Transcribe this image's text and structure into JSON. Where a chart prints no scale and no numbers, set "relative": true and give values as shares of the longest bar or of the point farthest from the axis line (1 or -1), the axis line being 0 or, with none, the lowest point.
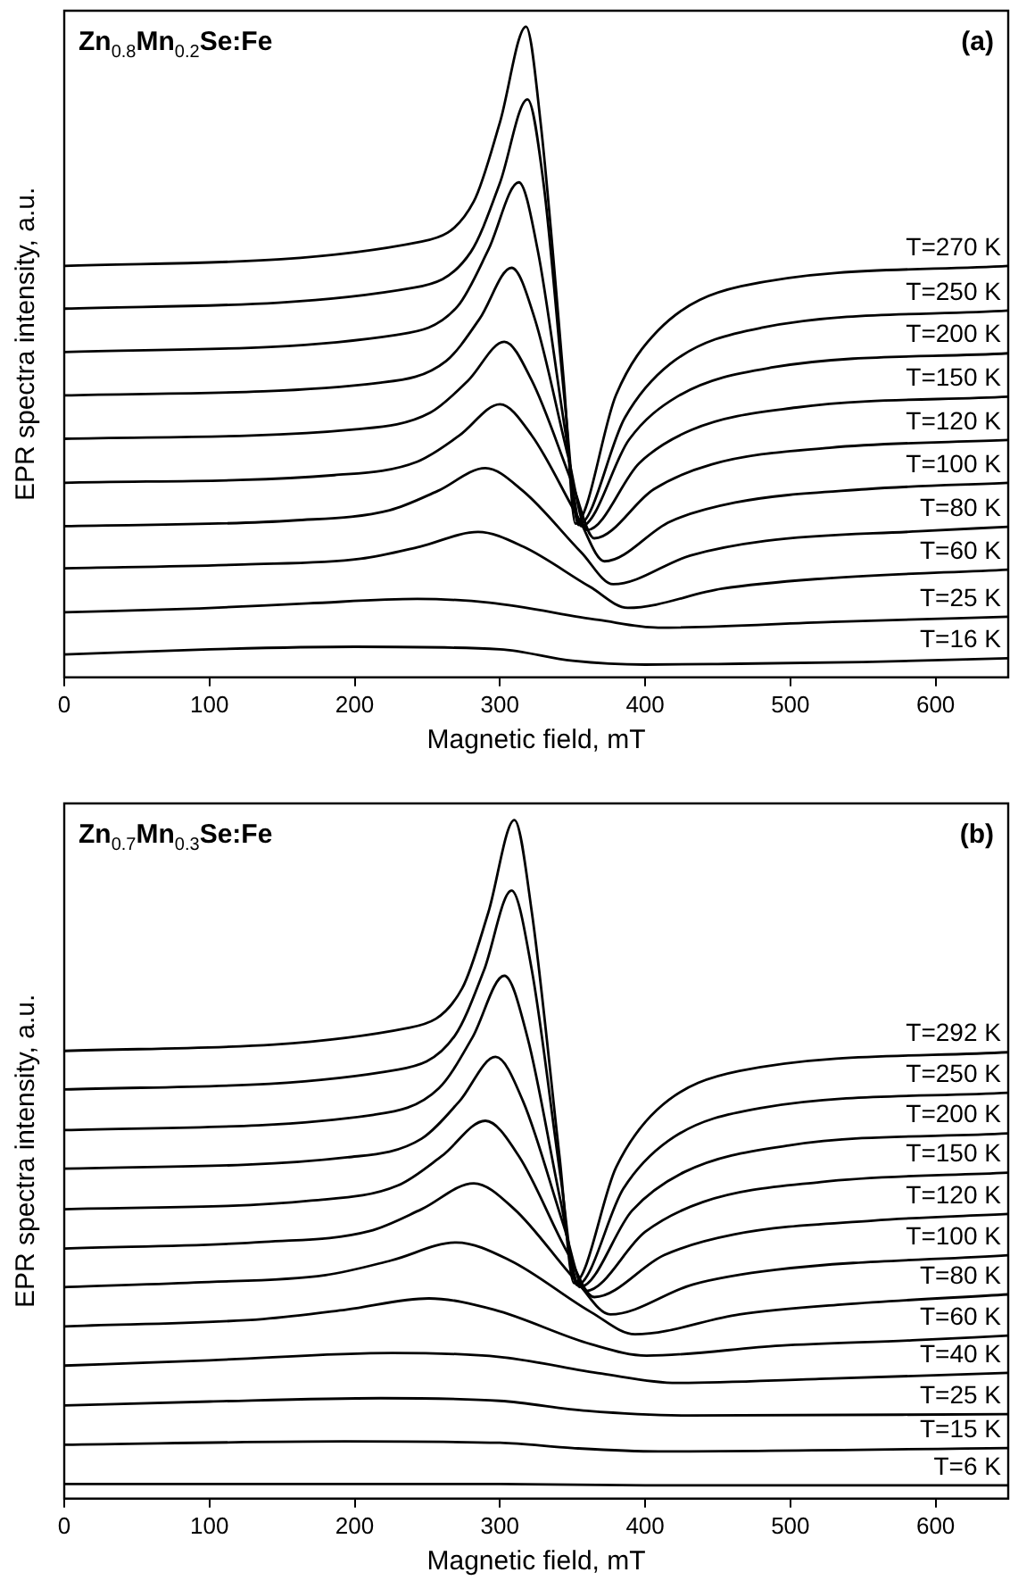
{
  "chart_data": [
    {
      "type": "line",
      "annotations": [
        "Zn$_{0.8}$Mn$_{0.2}$Se:Fe",
        "(a)"
      ],
      "xlabel": "Magnetic field, mT",
      "ylabel": "EPR spectra intensity, a.u.",
      "xlim": [
        0,
        650
      ],
      "xticks": [
        0,
        100,
        200,
        300,
        400,
        500,
        600
      ],
      "relative": true,
      "marker": "none",
      "series": [
        {
          "name": "T=270 K",
          "color": "#000000",
          "x": [
            0,
            246,
            282,
            300,
            318,
            328,
            344,
            352,
            380,
            409,
            466,
            650
          ],
          "values": [
            0.625,
            0.663,
            0.726,
            0.85,
            1.0,
            0.85,
            0.443,
            0.221,
            0.423,
            0.524,
            0.593,
            0.625
          ]
        },
        {
          "name": "T=250 K",
          "color": "#000000",
          "x": [
            0,
            241,
            280,
            300,
            319,
            330,
            345,
            354,
            386,
            417,
            480,
            650
          ],
          "values": [
            0.558,
            0.591,
            0.647,
            0.755,
            0.886,
            0.755,
            0.404,
            0.219,
            0.387,
            0.471,
            0.528,
            0.555
          ]
        },
        {
          "name": "T=200 K",
          "color": "#000000",
          "x": [
            0,
            229,
            271,
            292,
            313,
            326,
            345,
            356,
            389,
            422,
            488,
            650
          ],
          "values": [
            0.49,
            0.517,
            0.562,
            0.65,
            0.756,
            0.65,
            0.366,
            0.217,
            0.353,
            0.42,
            0.466,
            0.488
          ]
        },
        {
          "name": "T=150 K",
          "color": "#000000",
          "x": [
            0,
            218,
            263,
            286,
            308,
            324,
            347,
            360,
            396,
            432,
            504,
            650
          ],
          "values": [
            0.422,
            0.442,
            0.476,
            0.542,
            0.622,
            0.542,
            0.326,
            0.211,
            0.316,
            0.368,
            0.403,
            0.42
          ]
        },
        {
          "name": "T=120 K",
          "color": "#000000",
          "x": [
            0,
            201,
            252,
            278,
            303,
            322,
            350,
            365,
            406,
            446,
            527,
            650
          ],
          "values": [
            0.354,
            0.369,
            0.395,
            0.445,
            0.506,
            0.445,
            0.283,
            0.198,
            0.275,
            0.314,
            0.34,
            0.352
          ]
        },
        {
          "name": "T=100 K",
          "color": "#000000",
          "x": [
            0,
            186,
            243,
            272,
            300,
            322,
            354,
            372,
            417,
            462,
            552,
            650
          ],
          "values": [
            0.285,
            0.297,
            0.318,
            0.359,
            0.408,
            0.359,
            0.23,
            0.162,
            0.224,
            0.254,
            0.275,
            0.285
          ]
        },
        {
          "name": "T=80 K",
          "color": "#000000",
          "x": [
            0,
            158,
            224,
            257,
            290,
            316,
            356,
            378,
            431,
            483,
            588,
            650
          ],
          "values": [
            0.217,
            0.226,
            0.242,
            0.272,
            0.308,
            0.272,
            0.176,
            0.126,
            0.171,
            0.194,
            0.209,
            0.216
          ]
        },
        {
          "name": "T=60 K",
          "color": "#000000",
          "x": [
            0,
            123,
            204,
            245,
            285,
            316,
            362,
            388,
            453,
            517,
            650
          ],
          "values": [
            0.151,
            0.157,
            0.166,
            0.185,
            0.208,
            0.185,
            0.122,
            0.089,
            0.119,
            0.134,
            0.149
          ]
        },
        {
          "name": "T=25 K",
          "color": "#000000",
          "x": [
            0,
            93,
            168,
            243,
            293,
            368,
            409,
            529,
            650
          ],
          "values": [
            0.082,
            0.088,
            0.096,
            0.103,
            0.097,
            0.07,
            0.058,
            0.067,
            0.075
          ]
        },
        {
          "name": "T=16 K",
          "color": "#000000",
          "x": [
            0,
            100,
            200,
            300,
            350,
            400,
            450,
            550,
            650
          ],
          "values": [
            0.016,
            0.024,
            0.028,
            0.024,
            0.006,
            0.0,
            0.001,
            0.004,
            0.01
          ]
        }
      ]
    },
    {
      "type": "line",
      "annotations": [
        "Zn$_{0.7}$Mn$_{0.3}$Se:Fe",
        "(b)"
      ],
      "xlabel": "Magnetic field, mT",
      "ylabel": "EPR spectra intensity, a.u.",
      "xlim": [
        0,
        650
      ],
      "xticks": [
        0,
        100,
        200,
        300,
        400,
        500,
        600
      ],
      "relative": true,
      "marker": "none",
      "series": [
        {
          "name": "T=292 K",
          "color": "#000000",
          "x": [
            0,
            238,
            274,
            292,
            310,
            322,
            341,
            351,
            380,
            408,
            465,
            650
          ],
          "values": [
            0.653,
            0.688,
            0.747,
            0.861,
            1.0,
            0.861,
            0.495,
            0.304,
            0.478,
            0.564,
            0.623,
            0.651
          ]
        },
        {
          "name": "T=250 K",
          "color": "#000000",
          "x": [
            0,
            230,
            269,
            289,
            308,
            322,
            342,
            353,
            385,
            416,
            479,
            650
          ],
          "values": [
            0.595,
            0.625,
            0.676,
            0.774,
            0.894,
            0.774,
            0.46,
            0.301,
            0.446,
            0.518,
            0.567,
            0.59
          ]
        },
        {
          "name": "T=200 K",
          "color": "#000000",
          "x": [
            0,
            213,
            258,
            281,
            303,
            319,
            342,
            355,
            391,
            427,
            499,
            650
          ],
          "values": [
            0.534,
            0.557,
            0.597,
            0.673,
            0.766,
            0.673,
            0.425,
            0.298,
            0.413,
            0.471,
            0.511,
            0.529
          ]
        },
        {
          "name": "T=150 K",
          "color": "#000000",
          "x": [
            0,
            195,
            246,
            272,
            297,
            316,
            344,
            359,
            400,
            440,
            521,
            650
          ],
          "values": [
            0.476,
            0.493,
            0.521,
            0.577,
            0.644,
            0.577,
            0.39,
            0.292,
            0.381,
            0.426,
            0.456,
            0.47
          ]
        },
        {
          "name": "T=120 K",
          "color": "#000000",
          "x": [
            0,
            170,
            230,
            260,
            290,
            313,
            346,
            365,
            413,
            461,
            557,
            650
          ],
          "values": [
            0.415,
            0.428,
            0.451,
            0.495,
            0.548,
            0.495,
            0.352,
            0.283,
            0.346,
            0.377,
            0.398,
            0.408
          ]
        },
        {
          "name": "T=100 K",
          "color": "#000000",
          "x": [
            0,
            138,
            210,
            246,
            282,
            310,
            353,
            376,
            433,
            490,
            650
          ],
          "values": [
            0.356,
            0.366,
            0.382,
            0.415,
            0.454,
            0.415,
            0.306,
            0.257,
            0.302,
            0.324,
            0.346
          ]
        },
        {
          "name": "T=80 K",
          "color": "#000000",
          "x": [
            0,
            90,
            180,
            225,
            270,
            307,
            363,
            393,
            465,
            537,
            650
          ],
          "values": [
            0.298,
            0.305,
            0.316,
            0.338,
            0.365,
            0.338,
            0.26,
            0.227,
            0.257,
            0.272,
            0.287
          ]
        },
        {
          "name": "T=60 K",
          "color": "#000000",
          "x": [
            0,
            137,
            194,
            251,
            296,
            363,
            401,
            493,
            584,
            650
          ],
          "values": [
            0.239,
            0.25,
            0.264,
            0.281,
            0.264,
            0.212,
            0.195,
            0.21,
            0.218,
            0.225
          ]
        },
        {
          "name": "T=40 K",
          "color": "#000000",
          "x": [
            0,
            100,
            226,
            300,
            370,
            422,
            520,
            650
          ],
          "values": [
            0.18,
            0.188,
            0.199,
            0.193,
            0.168,
            0.154,
            0.16,
            0.169
          ]
        },
        {
          "name": "T=25 K",
          "color": "#000000",
          "x": [
            0,
            100,
            218,
            300,
            360,
            430,
            650
          ],
          "values": [
            0.12,
            0.126,
            0.131,
            0.127,
            0.112,
            0.105,
            0.107
          ]
        },
        {
          "name": "T=15 K",
          "color": "#000000",
          "x": [
            0,
            193,
            300,
            350,
            409,
            650
          ],
          "values": [
            0.061,
            0.066,
            0.064,
            0.056,
            0.051,
            0.056
          ]
        },
        {
          "name": "T=6 K",
          "color": "#000000",
          "x": [
            0,
            300,
            400,
            650
          ],
          "values": [
            0.002,
            0.002,
            0.0,
            0.0
          ]
        }
      ]
    }
  ]
}
